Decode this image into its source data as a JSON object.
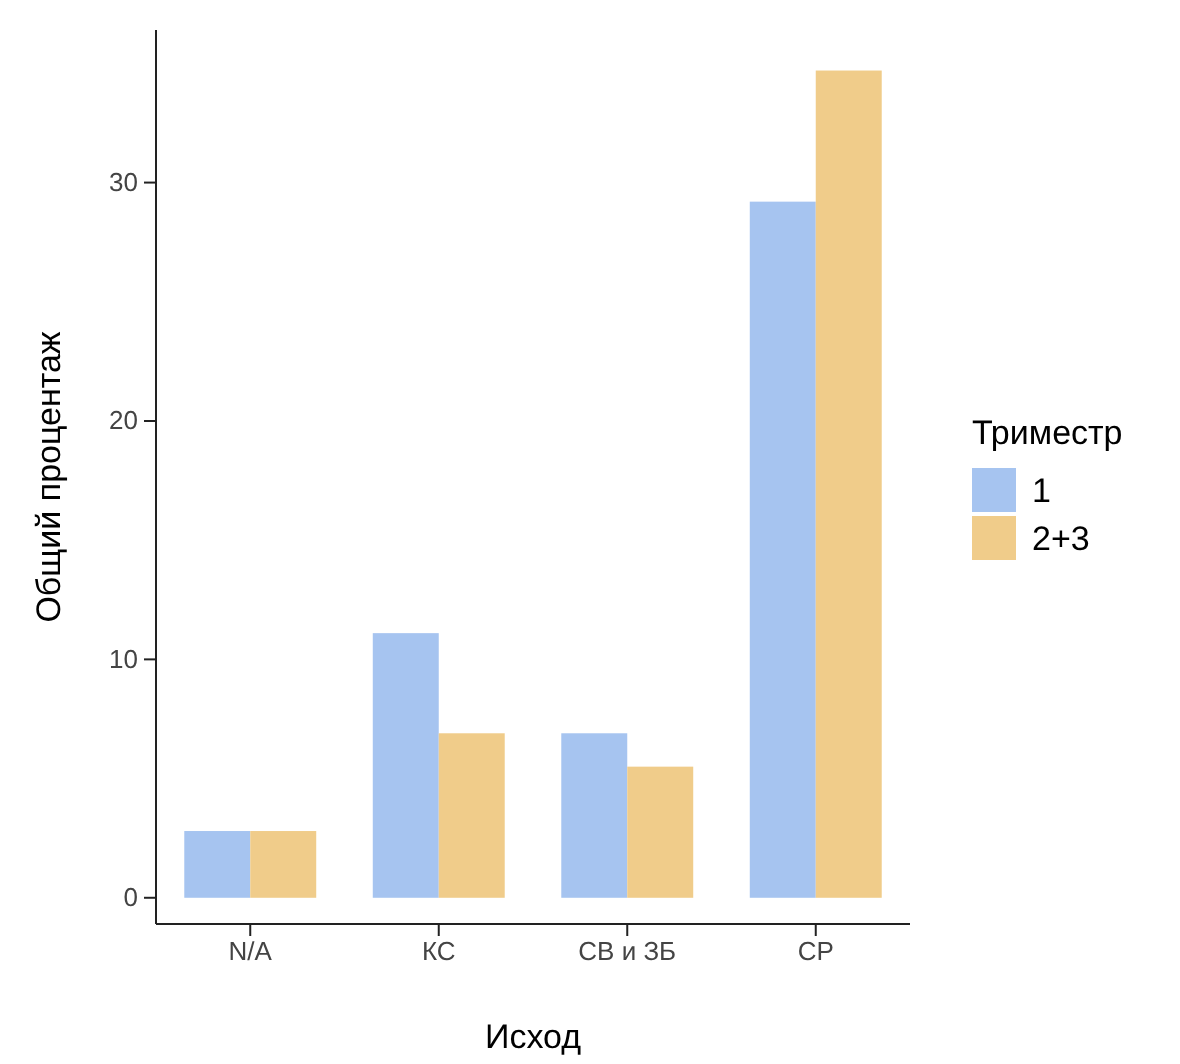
{
  "chart_data": {
    "type": "bar",
    "xlabel": "Исход",
    "ylabel": "Общий процентаж",
    "legend_title": "Триместр",
    "legend": "right",
    "grid": false,
    "categories": [
      "N/A",
      "КС",
      "СВ и ЗБ",
      "СР"
    ],
    "series": [
      {
        "name": "1",
        "color": "#a6c4f0",
        "values": [
          2.8,
          11.1,
          6.9,
          29.2
        ]
      },
      {
        "name": "2+3",
        "color": "#f0cc8a",
        "values": [
          2.8,
          6.9,
          5.5,
          34.7
        ]
      }
    ],
    "ylim": [
      -1.1,
      36.4
    ],
    "yticks": [
      0,
      10,
      20,
      30
    ]
  }
}
